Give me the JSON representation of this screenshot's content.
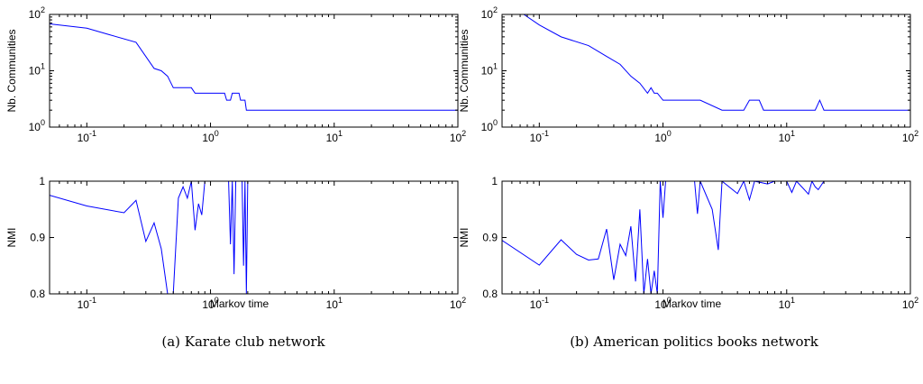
{
  "captions": [
    "(a)  Karate club network",
    "(b)  American politics books network"
  ],
  "chart_data": [
    {
      "type": "line",
      "panel": "a-top",
      "xscale": "log",
      "yscale": "log",
      "xlim": [
        0.05,
        100
      ],
      "ylim": [
        1,
        100
      ],
      "xlabel": "",
      "ylabel": "Nb. Communities",
      "xticks": [
        "10^-1",
        "10^0",
        "10^1",
        "10^2"
      ],
      "yticks": [
        "10^0",
        "10^1",
        "10^2"
      ],
      "color": "#0000ff",
      "points": [
        [
          0.05,
          68
        ],
        [
          0.1,
          57
        ],
        [
          0.15,
          44
        ],
        [
          0.25,
          32
        ],
        [
          0.35,
          11
        ],
        [
          0.4,
          10
        ],
        [
          0.45,
          8
        ],
        [
          0.5,
          5
        ],
        [
          0.7,
          5
        ],
        [
          0.75,
          4
        ],
        [
          1.0,
          4
        ],
        [
          1.3,
          4
        ],
        [
          1.35,
          3
        ],
        [
          1.45,
          3
        ],
        [
          1.5,
          4
        ],
        [
          1.7,
          4
        ],
        [
          1.75,
          3
        ],
        [
          1.9,
          3
        ],
        [
          1.95,
          2
        ],
        [
          100,
          2
        ]
      ]
    },
    {
      "type": "line",
      "panel": "a-bottom",
      "xscale": "log",
      "yscale": "linear",
      "xlim": [
        0.05,
        100
      ],
      "ylim": [
        0.8,
        1
      ],
      "xlabel": "Markov time",
      "ylabel": "NMI",
      "xticks": [
        "10^-1",
        "10^0",
        "10^1",
        "10^2"
      ],
      "yticks": [
        "0.8",
        "0.9",
        "1"
      ],
      "color": "#0000ff",
      "points": [
        [
          0.05,
          0.975
        ],
        [
          0.1,
          0.956
        ],
        [
          0.2,
          0.944
        ],
        [
          0.25,
          0.966
        ],
        [
          0.3,
          0.893
        ],
        [
          0.35,
          0.926
        ],
        [
          0.4,
          0.88
        ],
        [
          0.45,
          0.8
        ],
        [
          0.5,
          0.8
        ],
        [
          0.55,
          0.97
        ],
        [
          0.6,
          0.99
        ],
        [
          0.65,
          0.97
        ],
        [
          0.7,
          1.0
        ],
        [
          0.75,
          0.913
        ],
        [
          0.8,
          0.96
        ],
        [
          0.85,
          0.94
        ],
        [
          0.9,
          1.0
        ],
        [
          1.4,
          1.0
        ],
        [
          1.45,
          0.888
        ],
        [
          1.5,
          1.0
        ],
        [
          1.55,
          0.835
        ],
        [
          1.6,
          1.0
        ],
        [
          1.8,
          1.0
        ],
        [
          1.85,
          0.85
        ],
        [
          1.9,
          1.0
        ],
        [
          1.95,
          0.8
        ],
        [
          2.0,
          1.0
        ],
        [
          100,
          1.0
        ]
      ]
    },
    {
      "type": "line",
      "panel": "b-top",
      "xscale": "log",
      "yscale": "log",
      "xlim": [
        0.05,
        100
      ],
      "ylim": [
        1,
        100
      ],
      "xlabel": "",
      "ylabel": "Nb. Communities",
      "xticks": [
        "10^-1",
        "10^0",
        "10^1",
        "10^2"
      ],
      "yticks": [
        "10^0",
        "10^1",
        "10^2"
      ],
      "color": "#0000ff",
      "points": [
        [
          0.075,
          100
        ],
        [
          0.1,
          65
        ],
        [
          0.15,
          40
        ],
        [
          0.25,
          28
        ],
        [
          0.35,
          18
        ],
        [
          0.45,
          13
        ],
        [
          0.55,
          8
        ],
        [
          0.65,
          6
        ],
        [
          0.75,
          4
        ],
        [
          0.8,
          5
        ],
        [
          0.85,
          4
        ],
        [
          0.9,
          4
        ],
        [
          1.0,
          3
        ],
        [
          2.0,
          3
        ],
        [
          3.0,
          2
        ],
        [
          4.5,
          2
        ],
        [
          5.0,
          3
        ],
        [
          6.0,
          3
        ],
        [
          6.5,
          2
        ],
        [
          17,
          2
        ],
        [
          18.5,
          3
        ],
        [
          20,
          2
        ],
        [
          100,
          2
        ]
      ]
    },
    {
      "type": "line",
      "panel": "b-bottom",
      "xscale": "log",
      "yscale": "linear",
      "xlim": [
        0.05,
        100
      ],
      "ylim": [
        0.8,
        1
      ],
      "xlabel": "Markov time",
      "ylabel": "NMI",
      "xticks": [
        "10^-1",
        "10^0",
        "10^1",
        "10^2"
      ],
      "yticks": [
        "0.8",
        "0.9",
        "1"
      ],
      "color": "#0000ff",
      "points": [
        [
          0.05,
          0.895
        ],
        [
          0.1,
          0.851
        ],
        [
          0.15,
          0.896
        ],
        [
          0.2,
          0.87
        ],
        [
          0.25,
          0.86
        ],
        [
          0.3,
          0.862
        ],
        [
          0.35,
          0.915
        ],
        [
          0.4,
          0.825
        ],
        [
          0.45,
          0.888
        ],
        [
          0.5,
          0.868
        ],
        [
          0.55,
          0.92
        ],
        [
          0.6,
          0.822
        ],
        [
          0.65,
          0.95
        ],
        [
          0.7,
          0.8
        ],
        [
          0.75,
          0.862
        ],
        [
          0.8,
          0.8
        ],
        [
          0.85,
          0.841
        ],
        [
          0.9,
          0.8
        ],
        [
          0.95,
          1.0
        ],
        [
          1.0,
          0.935
        ],
        [
          1.05,
          1.0
        ],
        [
          1.8,
          1.0
        ],
        [
          1.9,
          0.942
        ],
        [
          2.0,
          1.0
        ],
        [
          2.5,
          0.95
        ],
        [
          2.8,
          0.878
        ],
        [
          3.0,
          1.0
        ],
        [
          4.0,
          0.978
        ],
        [
          4.5,
          1.0
        ],
        [
          5.0,
          0.967
        ],
        [
          5.5,
          1.0
        ],
        [
          7.0,
          0.995
        ],
        [
          8.0,
          1.0
        ],
        [
          10,
          1.0
        ],
        [
          11,
          0.98
        ],
        [
          12,
          1.0
        ],
        [
          15,
          0.977
        ],
        [
          16,
          1.0
        ],
        [
          17,
          0.99
        ],
        [
          18,
          0.985
        ],
        [
          20,
          1.0
        ],
        [
          100,
          1.0
        ]
      ]
    }
  ]
}
